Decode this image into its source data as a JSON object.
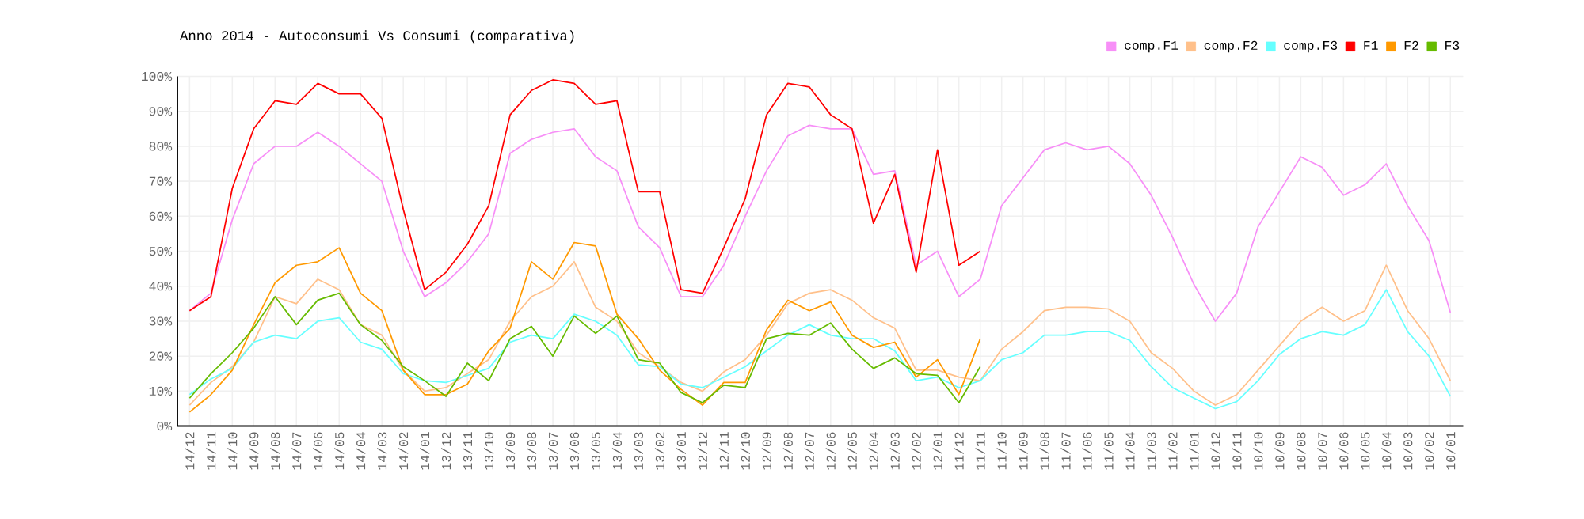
{
  "chart_data": {
    "type": "line",
    "title": "Anno 2014 - Autoconsumi Vs Consumi (comparativa)",
    "categories": [
      "14/12",
      "14/11",
      "14/10",
      "14/09",
      "14/08",
      "14/07",
      "14/06",
      "14/05",
      "14/04",
      "14/03",
      "14/02",
      "14/01",
      "13/12",
      "13/11",
      "13/10",
      "13/09",
      "13/08",
      "13/07",
      "13/06",
      "13/05",
      "13/04",
      "13/03",
      "13/02",
      "13/01",
      "12/12",
      "12/11",
      "12/10",
      "12/09",
      "12/08",
      "12/07",
      "12/06",
      "12/05",
      "12/04",
      "12/03",
      "12/02",
      "12/01",
      "11/12",
      "11/11",
      "11/10",
      "11/09",
      "11/08",
      "11/07",
      "11/06",
      "11/05",
      "11/04",
      "11/03",
      "11/02",
      "11/01",
      "10/12",
      "10/11",
      "10/10",
      "10/09",
      "10/08",
      "10/07",
      "10/06",
      "10/05",
      "10/04",
      "10/03",
      "10/02",
      "10/01"
    ],
    "series": [
      {
        "name": "comp.F1",
        "color": "#f78ff7",
        "values": [
          33,
          38,
          59,
          75,
          80,
          80,
          84,
          80,
          75,
          70,
          50,
          37,
          41,
          47,
          55,
          78,
          82,
          84,
          85,
          77,
          73,
          57,
          51,
          37,
          37,
          46,
          60,
          73,
          83,
          86,
          85,
          85,
          72,
          73,
          46,
          50,
          37,
          42,
          63,
          71,
          79,
          81,
          79,
          80,
          75,
          66,
          54,
          40.5,
          30,
          38,
          57,
          67,
          77,
          74,
          66,
          69,
          75,
          63,
          53,
          32.5
        ]
      },
      {
        "name": "comp.F2",
        "color": "#ffc08a",
        "values": [
          6,
          12.5,
          17,
          24,
          37,
          35,
          42,
          39,
          29,
          26,
          16,
          10,
          11,
          15,
          19,
          30,
          37,
          40,
          47,
          34,
          30,
          21,
          17,
          12.5,
          10,
          15.5,
          19,
          26,
          35,
          38,
          39,
          36,
          31,
          28,
          16,
          16,
          14,
          13,
          22,
          27,
          33,
          34,
          34,
          33.5,
          30,
          21,
          16.5,
          10,
          6,
          9,
          16,
          23,
          30,
          34,
          30,
          33,
          46,
          33,
          25,
          13
        ]
      },
      {
        "name": "comp.F3",
        "color": "#66ffff",
        "values": [
          9,
          13.5,
          16.5,
          24,
          26,
          25,
          30,
          31,
          24,
          22,
          15,
          13,
          12.5,
          14.5,
          16.5,
          24,
          26,
          25,
          32,
          30,
          26,
          17.5,
          17,
          12,
          11,
          14,
          17,
          21.5,
          26,
          29,
          26,
          25,
          25,
          21.5,
          13,
          14,
          11,
          13,
          19,
          21,
          26,
          26,
          27,
          27,
          24.5,
          17,
          11,
          8,
          5,
          7,
          13,
          20.5,
          25,
          27,
          26,
          29,
          39,
          27,
          20,
          8.5
        ]
      },
      {
        "name": "F1",
        "color": "#ff0000",
        "values": [
          33,
          37,
          68,
          85,
          93,
          92,
          98,
          95,
          95,
          88,
          62,
          39,
          44,
          52,
          63,
          89,
          96,
          99,
          98,
          92,
          93,
          67,
          67,
          39,
          38,
          51,
          65,
          89,
          98,
          97,
          89,
          85,
          58,
          72,
          44,
          79,
          46,
          50,
          null,
          null,
          null,
          null,
          null,
          null,
          null,
          null,
          null,
          null,
          null,
          null,
          null,
          null,
          null,
          null,
          null,
          null,
          null,
          null,
          null,
          null
        ]
      },
      {
        "name": "F2",
        "color": "#ff9900",
        "values": [
          4,
          9,
          16,
          29,
          41,
          46,
          47,
          51,
          38,
          33,
          16,
          9,
          9,
          12,
          21.5,
          28,
          47,
          42,
          52.5,
          51.5,
          32,
          25,
          16,
          10.5,
          6,
          12.5,
          12.5,
          27.5,
          36,
          33,
          35.5,
          26,
          22.5,
          24,
          14,
          19,
          9,
          25,
          null,
          null,
          null,
          null,
          null,
          null,
          null,
          null,
          null,
          null,
          null,
          null,
          null,
          null,
          null,
          null,
          null,
          null,
          null,
          null,
          null,
          null
        ]
      },
      {
        "name": "F3",
        "color": "#66bb00",
        "values": [
          8,
          15,
          21,
          28,
          37,
          29,
          36,
          38,
          29,
          24.5,
          17,
          13,
          8.5,
          18,
          13,
          25,
          28.5,
          20,
          31.5,
          26.5,
          31.5,
          19,
          18,
          9.6,
          6.7,
          11.7,
          11,
          25,
          26.5,
          26,
          29.5,
          22,
          16.5,
          19.5,
          15,
          14.5,
          6.7,
          17,
          null,
          null,
          null,
          null,
          null,
          null,
          null,
          null,
          null,
          null,
          null,
          null,
          null,
          null,
          null,
          null,
          null,
          null,
          null,
          null,
          null,
          null
        ]
      }
    ],
    "ylim": [
      0,
      100
    ],
    "yticks": [
      {
        "value": 0,
        "label": "0%"
      },
      {
        "value": 10,
        "label": "10%"
      },
      {
        "value": 20,
        "label": "20%"
      },
      {
        "value": 30,
        "label": "30%"
      },
      {
        "value": 40,
        "label": "40%"
      },
      {
        "value": 50,
        "label": "50%"
      },
      {
        "value": 60,
        "label": "60%"
      },
      {
        "value": 70,
        "label": "70%"
      },
      {
        "value": 80,
        "label": "80%"
      },
      {
        "value": 90,
        "label": "90%"
      },
      {
        "value": 100,
        "label": "100%"
      }
    ],
    "grid": true,
    "legend": "top right"
  }
}
